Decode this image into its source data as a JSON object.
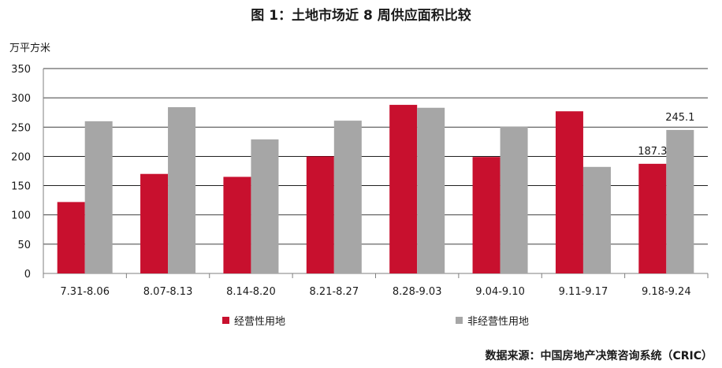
{
  "title": "图 1：土地市场近 8 周供应面积比较",
  "unit": "万平方米",
  "source": "数据来源：中国房地产决策咨询系统（CRIC）",
  "colors": {
    "series1": "#c8102e",
    "series2": "#a6a6a6"
  },
  "chart_data": {
    "type": "bar",
    "title": "图 1：土地市场近 8 周供应面积比较",
    "ylabel": "万平方米",
    "xlabel": "",
    "ylim": [
      0,
      350
    ],
    "yticks": [
      0,
      50,
      100,
      150,
      200,
      250,
      300,
      350
    ],
    "grid": true,
    "legend_position": "bottom",
    "categories": [
      "7.31-8.06",
      "8.07-8.13",
      "8.14-8.20",
      "8.21-8.27",
      "8.28-9.03",
      "9.04-9.10",
      "9.11-9.17",
      "9.18-9.24"
    ],
    "series": [
      {
        "name": "经营性用地",
        "values": [
          122,
          170,
          165,
          200,
          288,
          199,
          277,
          187.3
        ]
      },
      {
        "name": "非经营性用地",
        "values": [
          260,
          284,
          229,
          261,
          283,
          251,
          182,
          245.1
        ]
      }
    ],
    "data_labels": [
      {
        "series": 0,
        "index": 7,
        "text": "187.3"
      },
      {
        "series": 1,
        "index": 7,
        "text": "245.1"
      }
    ]
  }
}
